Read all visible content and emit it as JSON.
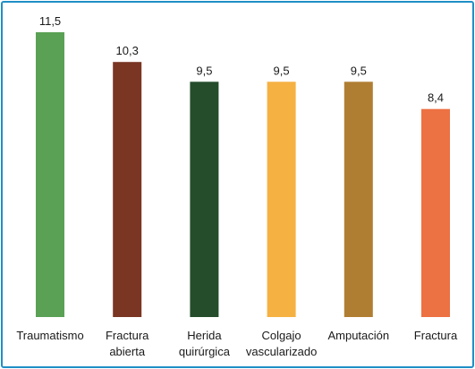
{
  "chart_data": {
    "type": "bar",
    "categories": [
      [
        "Traumatismo"
      ],
      [
        "Fractura",
        "abierta"
      ],
      [
        "Herida",
        "quirúrgica"
      ],
      [
        "Colgajo",
        "vascularizado"
      ],
      [
        "Amputación"
      ],
      [
        "Fractura"
      ]
    ],
    "values": [
      11.5,
      10.3,
      9.5,
      9.5,
      9.5,
      8.4
    ],
    "value_labels": [
      "11,5",
      "10,3",
      "9,5",
      "9,5",
      "9,5",
      "8,4"
    ],
    "colors": [
      "#5aa155",
      "#7a3523",
      "#254d2b",
      "#f5b142",
      "#b07e32",
      "#ec7143"
    ],
    "ylim": [
      0,
      11.5
    ],
    "grid": false,
    "legend": "none",
    "frame_color": "#1f8fc6"
  }
}
